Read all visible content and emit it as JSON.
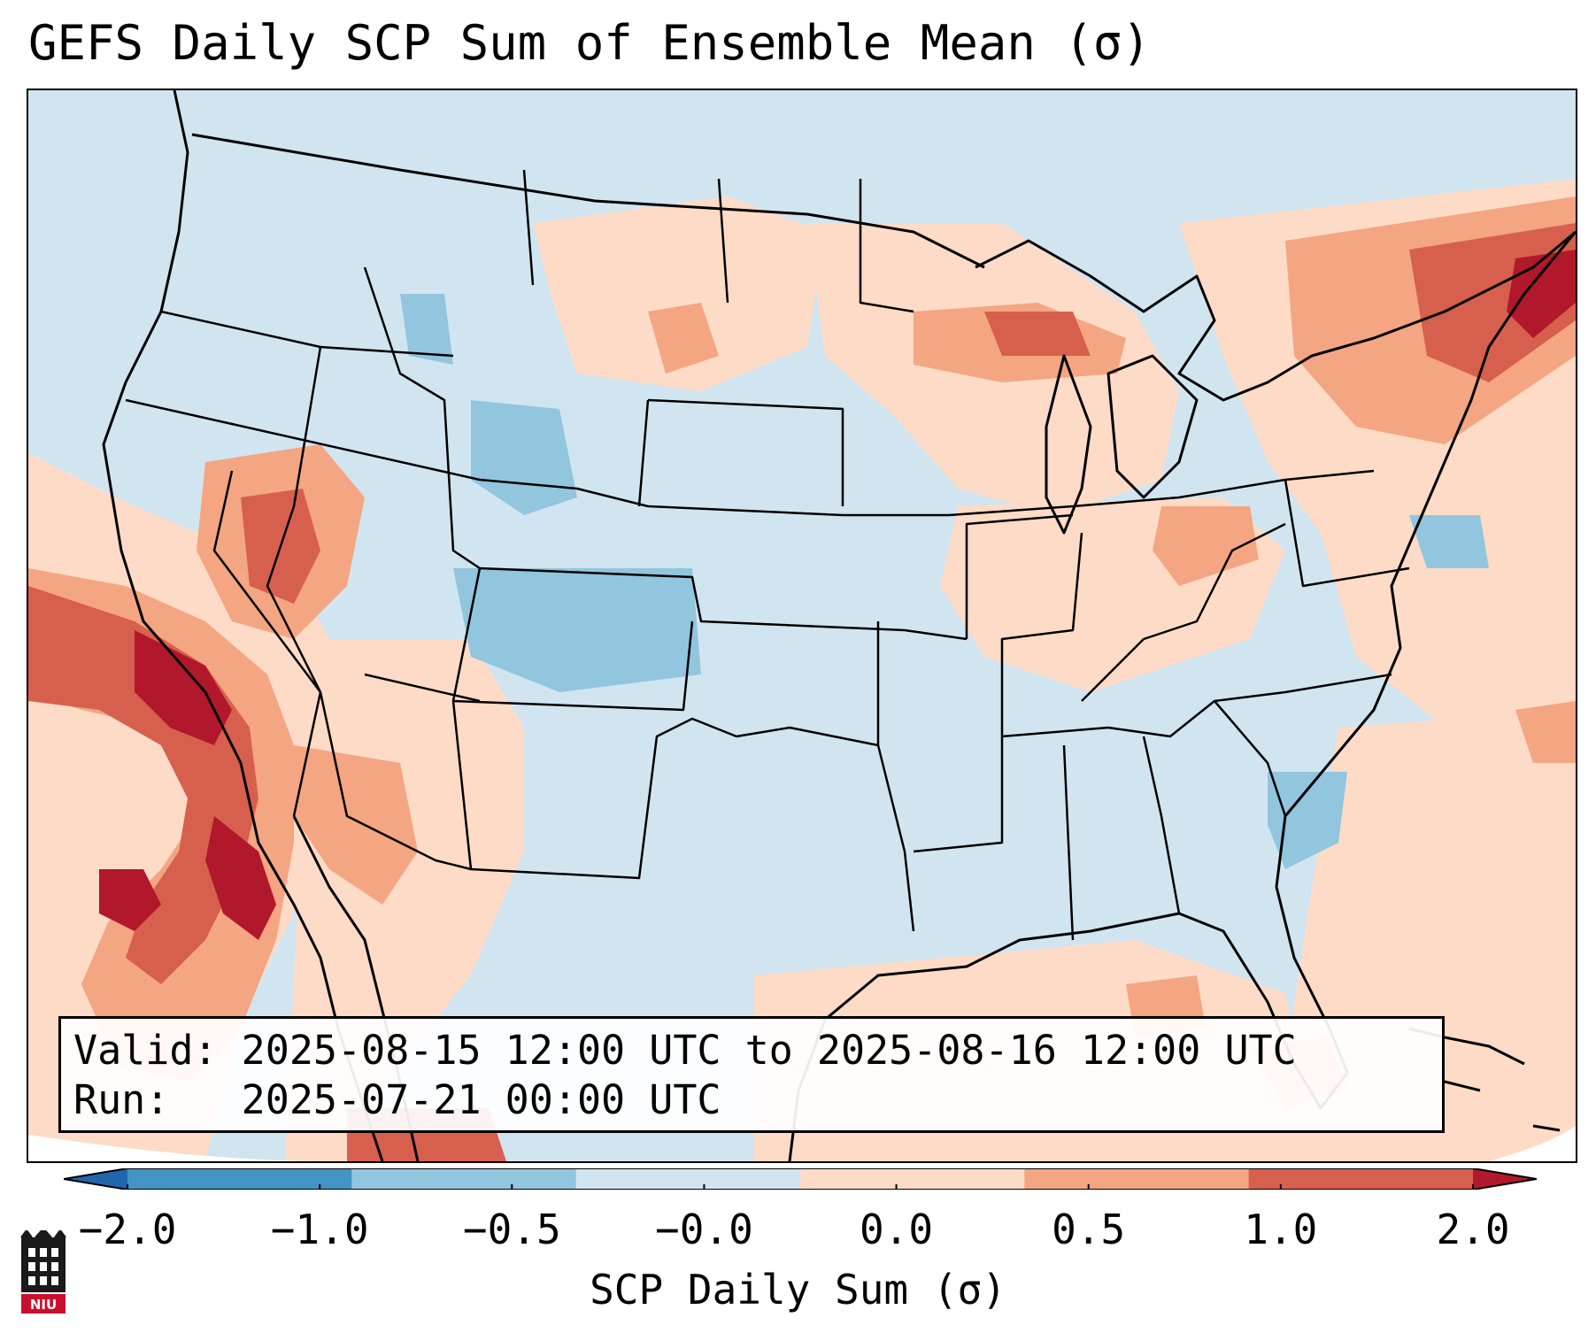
{
  "title": "GEFS Daily SCP Sum of Ensemble Mean (σ)",
  "info": {
    "valid_label": "Valid:",
    "valid_value": "2025-08-15 12:00 UTC to 2025-08-16 12:00 UTC",
    "run_label": "Run:",
    "run_value": "2025-07-21 00:00 UTC"
  },
  "colorbar": {
    "label": "SCP Daily Sum (σ)",
    "ticks": [
      "−2.0",
      "−1.0",
      "−0.5",
      "−0.0",
      "0.0",
      "0.5",
      "1.0",
      "2.0"
    ],
    "bin_colors": [
      "#4393c3",
      "#92c5de",
      "#d1e5f0",
      "#fddbc7",
      "#f4a582",
      "#d6604d"
    ],
    "under_color": "#2166ac",
    "over_color": "#b2182b"
  },
  "map": {
    "background_color": "#d1e5f0",
    "anomaly_colors": {
      "light_positive": "#fddbc7",
      "medium_positive": "#f4a582",
      "strong_positive": "#d6604d",
      "extreme_positive": "#b2182b",
      "light_negative": "#92c5de"
    }
  },
  "logo": {
    "name": "niu-logo",
    "text": "NIU"
  }
}
